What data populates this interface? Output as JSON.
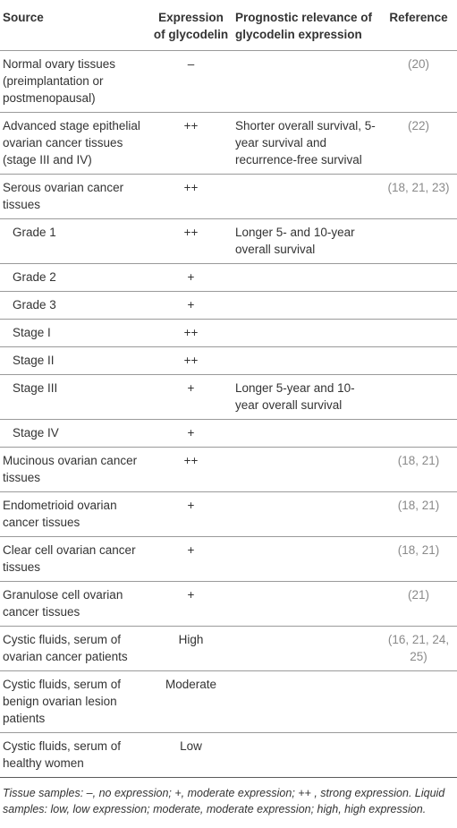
{
  "headers": {
    "source": "Source",
    "expression": "Expression of glycodelin",
    "prognostic": "Prognostic relevance of glycodelin expression",
    "reference": "Reference"
  },
  "rows": [
    {
      "source": "Normal ovary tissues (preimplantation or postmenopausal)",
      "expression": "–",
      "prognostic": "",
      "reference": "(20)",
      "indent": false
    },
    {
      "source": "Advanced stage epithelial ovarian cancer tissues (stage III and IV)",
      "expression": "++",
      "prognostic": "Shorter overall survival, 5-year survival and recurrence-free survival",
      "reference": "(22)",
      "indent": false
    },
    {
      "source": "Serous ovarian cancer tissues",
      "expression": "++",
      "prognostic": "",
      "reference": "(18, 21, 23)",
      "indent": false
    },
    {
      "source": "Grade 1",
      "expression": "++",
      "prognostic": "Longer 5- and 10-year overall survival",
      "reference": "",
      "indent": true
    },
    {
      "source": "Grade 2",
      "expression": "+",
      "prognostic": "",
      "reference": "",
      "indent": true
    },
    {
      "source": "Grade 3",
      "expression": "+",
      "prognostic": "",
      "reference": "",
      "indent": true
    },
    {
      "source": "Stage I",
      "expression": "++",
      "prognostic": "",
      "reference": "",
      "indent": true
    },
    {
      "source": "Stage II",
      "expression": "++",
      "prognostic": "",
      "reference": "",
      "indent": true
    },
    {
      "source": "Stage III",
      "expression": "+",
      "prognostic": "Longer 5-year and 10-year overall survival",
      "reference": "",
      "indent": true
    },
    {
      "source": "Stage IV",
      "expression": "+",
      "prognostic": "",
      "reference": "",
      "indent": true
    },
    {
      "source": "Mucinous ovarian cancer tissues",
      "expression": "++",
      "prognostic": "",
      "reference": "(18, 21)",
      "indent": false
    },
    {
      "source": "Endometrioid ovarian cancer tissues",
      "expression": "+",
      "prognostic": "",
      "reference": "(18, 21)",
      "indent": false
    },
    {
      "source": "Clear cell ovarian cancer tissues",
      "expression": "+",
      "prognostic": "",
      "reference": "(18, 21)",
      "indent": false
    },
    {
      "source": "Granulose cell ovarian cancer tissues",
      "expression": "+",
      "prognostic": "",
      "reference": "(21)",
      "indent": false
    },
    {
      "source": "Cystic fluids, serum of ovarian cancer patients",
      "expression": "High",
      "prognostic": "",
      "reference": "(16, 21, 24, 25)",
      "indent": false
    },
    {
      "source": "Cystic fluids, serum of benign ovarian lesion patients",
      "expression": "Moderate",
      "prognostic": "",
      "reference": "",
      "indent": false
    },
    {
      "source": "Cystic fluids, serum of healthy women",
      "expression": "Low",
      "prognostic": "",
      "reference": "",
      "indent": false
    }
  ],
  "footnote": "Tissue samples: –, no expression; +, moderate expression; ++ , strong expression. Liquid samples: low, low expression; moderate, moderate expression; high, high expression."
}
